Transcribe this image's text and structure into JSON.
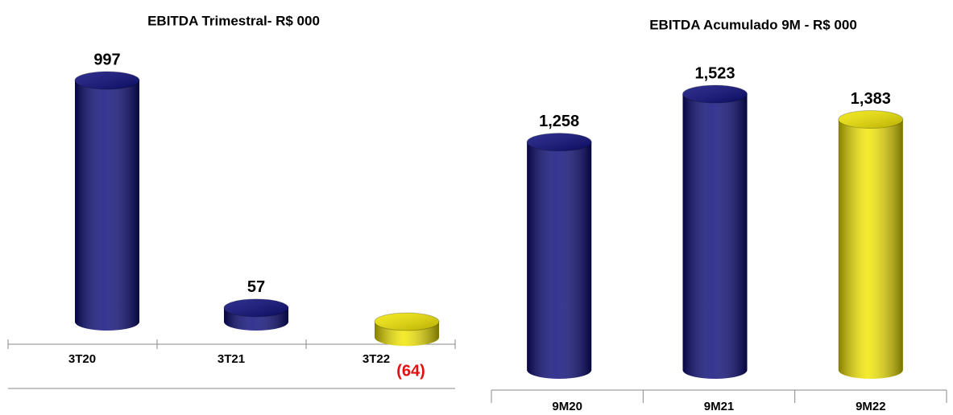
{
  "chart_data": [
    {
      "type": "bar",
      "title": "EBITDA Trimestral- R$ 000",
      "categories": [
        "3T20",
        "3T21",
        "3T22"
      ],
      "values": [
        997,
        57,
        -64
      ],
      "value_labels": [
        "997",
        "57",
        "(64)"
      ],
      "colors": [
        "#0a0a7a",
        "#0a0a7a",
        "#f2e600"
      ],
      "negative_label_color": "#e01010"
    },
    {
      "type": "bar",
      "title": "EBITDA Acumulado 9M   - R$ 000",
      "categories": [
        "9M20",
        "9M21",
        "9M22"
      ],
      "values": [
        1258,
        1523,
        1383
      ],
      "value_labels": [
        "1,258",
        "1,523",
        "1,383"
      ],
      "colors": [
        "#0a0a7a",
        "#0a0a7a",
        "#f2e600"
      ]
    }
  ]
}
